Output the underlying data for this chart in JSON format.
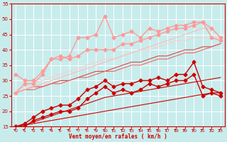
{
  "background_color": "#c8ecec",
  "grid_color": "#ffffff",
  "xlabel": "Vent moyen/en rafales ( km/h )",
  "xlabel_color": "#cc0000",
  "tick_color": "#cc0000",
  "xlim": [
    -0.5,
    23.5
  ],
  "ylim": [
    15,
    55
  ],
  "yticks": [
    15,
    20,
    25,
    30,
    35,
    40,
    45,
    50,
    55
  ],
  "xticks": [
    0,
    1,
    2,
    3,
    4,
    5,
    6,
    7,
    8,
    9,
    10,
    11,
    12,
    13,
    14,
    15,
    16,
    17,
    18,
    19,
    20,
    21,
    22,
    23
  ],
  "lines": [
    {
      "x": [
        0,
        1,
        2,
        3,
        4,
        5,
        6,
        7,
        8,
        9,
        10,
        11,
        12,
        13,
        14,
        15,
        16,
        17,
        18,
        19,
        20,
        21,
        22,
        23
      ],
      "y": [
        15,
        15.5,
        16,
        16.5,
        17,
        17.5,
        18,
        18.5,
        19,
        19.5,
        20,
        20.5,
        21,
        21.5,
        22,
        22.5,
        23,
        23.5,
        24,
        24.5,
        25,
        25.5,
        26,
        26
      ],
      "color": "#cc0000",
      "lw": 0.8,
      "marker": null,
      "ms": 0,
      "zorder": 2
    },
    {
      "x": [
        0,
        1,
        2,
        3,
        4,
        5,
        6,
        7,
        8,
        9,
        10,
        11,
        12,
        13,
        14,
        15,
        16,
        17,
        18,
        19,
        20,
        21,
        22,
        23
      ],
      "y": [
        15,
        15.5,
        16.5,
        17.5,
        18.5,
        19.5,
        20.5,
        21.5,
        22.5,
        23.5,
        24.5,
        25,
        25.5,
        26,
        26.5,
        27,
        27.5,
        28,
        28.5,
        29,
        29.5,
        30,
        30.5,
        31
      ],
      "color": "#cc0000",
      "lw": 0.8,
      "marker": null,
      "ms": 0,
      "zorder": 2
    },
    {
      "x": [
        0,
        1,
        2,
        3,
        4,
        5,
        6,
        7,
        8,
        9,
        10,
        11,
        12,
        13,
        14,
        15,
        16,
        17,
        18,
        19,
        20,
        21,
        22,
        23
      ],
      "y": [
        15,
        15,
        17,
        18,
        19,
        20,
        20,
        21,
        24,
        26,
        28,
        26,
        27,
        26,
        27,
        29,
        28,
        29,
        30,
        30,
        32,
        25,
        26,
        25
      ],
      "color": "#cc0000",
      "lw": 1.0,
      "marker": "D",
      "ms": 2.5,
      "zorder": 5
    },
    {
      "x": [
        0,
        1,
        2,
        3,
        4,
        5,
        6,
        7,
        8,
        9,
        10,
        11,
        12,
        13,
        14,
        15,
        16,
        17,
        18,
        19,
        20,
        21,
        22,
        23
      ],
      "y": [
        15,
        16,
        18,
        20,
        21,
        22,
        22,
        24,
        27,
        28,
        30,
        28,
        29,
        29,
        30,
        30,
        31,
        30,
        32,
        32,
        36,
        28,
        27,
        26
      ],
      "color": "#cc0000",
      "lw": 1.0,
      "marker": "D",
      "ms": 2.5,
      "zorder": 5
    },
    {
      "x": [
        0,
        1,
        2,
        3,
        4,
        5,
        6,
        7,
        8,
        9,
        10,
        11,
        12,
        13,
        14,
        15,
        16,
        17,
        18,
        19,
        20,
        21,
        22,
        23
      ],
      "y": [
        26,
        27,
        28,
        28,
        29,
        30,
        30,
        31,
        32,
        33,
        33,
        34,
        35,
        36,
        36,
        37,
        38,
        38,
        39,
        40,
        40,
        41,
        41,
        42
      ],
      "color": "#dd4444",
      "lw": 0.8,
      "marker": null,
      "ms": 0,
      "zorder": 3
    },
    {
      "x": [
        0,
        1,
        2,
        3,
        4,
        5,
        6,
        7,
        8,
        9,
        10,
        11,
        12,
        13,
        14,
        15,
        16,
        17,
        18,
        19,
        20,
        21,
        22,
        23
      ],
      "y": [
        26,
        27,
        27,
        28,
        29,
        29,
        30,
        31,
        31,
        32,
        33,
        33,
        34,
        35,
        35,
        36,
        37,
        37,
        38,
        39,
        39,
        40,
        41,
        42
      ],
      "color": "#ee6666",
      "lw": 0.8,
      "marker": null,
      "ms": 0,
      "zorder": 3
    },
    {
      "x": [
        0,
        1,
        2,
        3,
        4,
        5,
        6,
        7,
        8,
        9,
        10,
        11,
        12,
        13,
        14,
        15,
        16,
        17,
        18,
        19,
        20,
        21,
        22,
        23
      ],
      "y": [
        26,
        29,
        29,
        32,
        37,
        37,
        38,
        44,
        44,
        45,
        51,
        44,
        45,
        46,
        44,
        47,
        46,
        47,
        48,
        48,
        49,
        49,
        44,
        43
      ],
      "color": "#ff9999",
      "lw": 1.0,
      "marker": "D",
      "ms": 2.5,
      "zorder": 5
    },
    {
      "x": [
        0,
        1,
        2,
        3,
        4,
        5,
        6,
        7,
        8,
        9,
        10,
        11,
        12,
        13,
        14,
        15,
        16,
        17,
        18,
        19,
        20,
        21,
        22,
        23
      ],
      "y": [
        32,
        30,
        30,
        33,
        37,
        38,
        37,
        38,
        40,
        40,
        40,
        40,
        42,
        42,
        43,
        44,
        45,
        46,
        47,
        47,
        48,
        49,
        47,
        44
      ],
      "color": "#ff9999",
      "lw": 1.0,
      "marker": "D",
      "ms": 2.5,
      "zorder": 4
    },
    {
      "x": [
        0,
        1,
        2,
        3,
        4,
        5,
        6,
        7,
        8,
        9,
        10,
        11,
        12,
        13,
        14,
        15,
        16,
        17,
        18,
        19,
        20,
        21,
        22,
        23
      ],
      "y": [
        26,
        27,
        28,
        29,
        30,
        31,
        32,
        33,
        34,
        35,
        36,
        37,
        38,
        39,
        40,
        41,
        42,
        43,
        44,
        45,
        46,
        47,
        47,
        44
      ],
      "color": "#ffbbbb",
      "lw": 0.8,
      "marker": null,
      "ms": 0,
      "zorder": 3
    },
    {
      "x": [
        0,
        1,
        2,
        3,
        4,
        5,
        6,
        7,
        8,
        9,
        10,
        11,
        12,
        13,
        14,
        15,
        16,
        17,
        18,
        19,
        20,
        21,
        22,
        23
      ],
      "y": [
        27,
        28,
        29,
        30,
        31,
        32,
        33,
        34,
        35,
        36,
        37,
        37,
        38,
        39,
        40,
        40,
        41,
        42,
        43,
        43,
        44,
        44,
        44,
        44
      ],
      "color": "#ffcccc",
      "lw": 0.8,
      "marker": null,
      "ms": 0,
      "zorder": 2
    }
  ]
}
